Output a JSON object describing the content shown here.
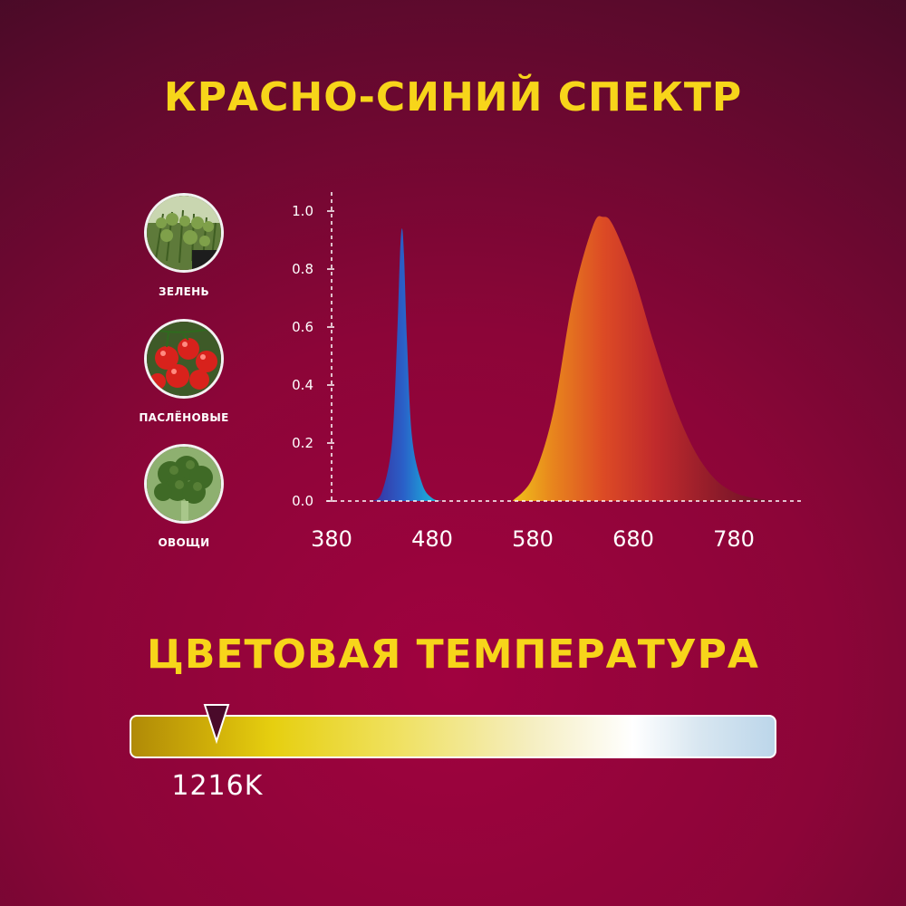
{
  "heading_spectrum": "КРАСНО-СИНИЙ СПЕКТР",
  "heading_temperature": "ЦВЕТОВАЯ ТЕМПЕРАТУРА",
  "plants": [
    {
      "label": "ЗЕЛЕНЬ",
      "icon": "herbs-icon"
    },
    {
      "label": "ПАСЛЁНОВЫЕ",
      "icon": "tomatoes-icon"
    },
    {
      "label": "ОВОЩИ",
      "icon": "broccoli-icon"
    }
  ],
  "chart_data": {
    "type": "area",
    "title": "",
    "xlabel": "",
    "ylabel": "",
    "x_ticks": [
      "380",
      "480",
      "580",
      "680",
      "780"
    ],
    "y_ticks": [
      "0.0",
      "0.2",
      "0.4",
      "0.6",
      "0.8",
      "1.0"
    ],
    "xlim": [
      380,
      830
    ],
    "ylim": [
      0,
      1.0
    ],
    "grid": false,
    "series": [
      {
        "peak_x": 450,
        "peak_y": 0.94,
        "from": 420,
        "to": 490,
        "color": "#2a6bd1",
        "x": [
          420,
          430,
          440,
          445,
          448,
          450,
          452,
          455,
          460,
          470,
          480,
          490
        ],
        "y": [
          0.0,
          0.03,
          0.2,
          0.55,
          0.85,
          0.94,
          0.85,
          0.55,
          0.22,
          0.06,
          0.01,
          0.0
        ]
      },
      {
        "peak_x": 650,
        "peak_y": 0.98,
        "from": 560,
        "to": 820,
        "color": "#c0272d",
        "x": [
          560,
          580,
          600,
          620,
          640,
          650,
          660,
          680,
          700,
          720,
          740,
          760,
          780,
          800,
          820
        ],
        "y": [
          0.0,
          0.08,
          0.3,
          0.7,
          0.95,
          0.98,
          0.95,
          0.78,
          0.55,
          0.34,
          0.18,
          0.08,
          0.03,
          0.01,
          0.0
        ]
      }
    ]
  },
  "color_temperature": {
    "value_label": "1216K",
    "level": 0.135,
    "marker_color": "#4a0a2a"
  }
}
